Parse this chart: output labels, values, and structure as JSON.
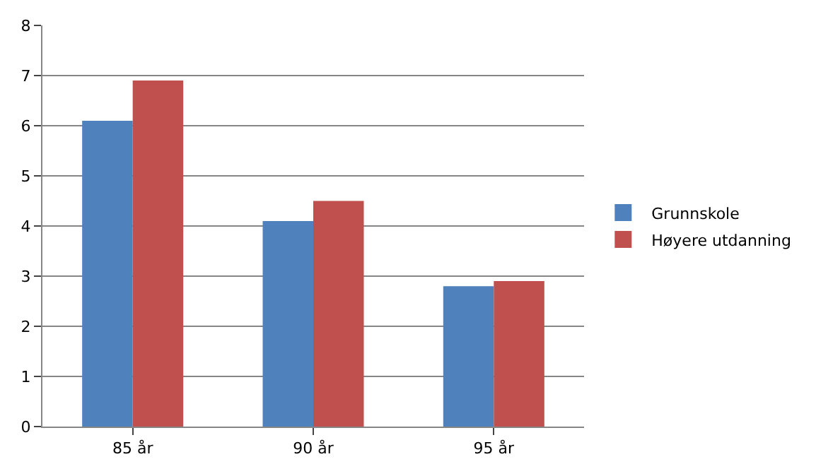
{
  "chart_data": {
    "type": "bar",
    "categories": [
      "85 år",
      "90 år",
      "95 år"
    ],
    "series": [
      {
        "name": "Grunnskole",
        "color": "#4f81bd",
        "values": [
          6.1,
          4.1,
          2.8
        ]
      },
      {
        "name": "Høyere utdanning",
        "color": "#c0504d",
        "values": [
          6.9,
          4.5,
          2.9
        ]
      }
    ],
    "ylim": [
      0,
      8
    ],
    "yticks": [
      0,
      1,
      2,
      3,
      4,
      5,
      6,
      7,
      8
    ],
    "grid": "y",
    "legend": "right"
  }
}
